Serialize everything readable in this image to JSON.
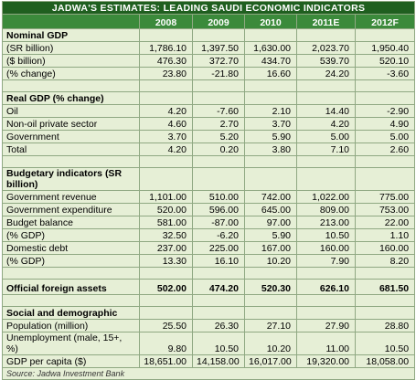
{
  "title": "JADWA'S ESTIMATES: LEADING SAUDI ECONOMIC INDICATORS",
  "columns": [
    "2008",
    "2009",
    "2010",
    "2011E",
    "2012F"
  ],
  "sections": [
    {
      "title": "Nominal GDP",
      "rows": [
        {
          "label": "(SR billion)",
          "values": [
            "1,786.10",
            "1,397.50",
            "1,630.00",
            "2,023.70",
            "1,950.40"
          ]
        },
        {
          "label": "($ billion)",
          "values": [
            "476.30",
            "372.70",
            "434.70",
            "539.70",
            "520.10"
          ]
        },
        {
          "label": "(% change)",
          "values": [
            "23.80",
            "-21.80",
            "16.60",
            "24.20",
            "-3.60"
          ]
        }
      ]
    },
    {
      "title": "Real GDP (% change)",
      "rows": [
        {
          "label": "Oil",
          "values": [
            "4.20",
            "-7.60",
            "2.10",
            "14.40",
            "-2.90"
          ]
        },
        {
          "label": "Non-oil private sector",
          "values": [
            "4.60",
            "2.70",
            "3.70",
            "4.20",
            "4.90"
          ]
        },
        {
          "label": "Government",
          "values": [
            "3.70",
            "5.20",
            "5.90",
            "5.00",
            "5.00"
          ]
        },
        {
          "label": "Total",
          "values": [
            "4.20",
            "0.20",
            "3.80",
            "7.10",
            "2.60"
          ]
        }
      ]
    },
    {
      "title": "Budgetary indicators (SR billion)",
      "rows": [
        {
          "label": "Government revenue",
          "values": [
            "1,101.00",
            "510.00",
            "742.00",
            "1,022.00",
            "775.00"
          ]
        },
        {
          "label": "Government expenditure",
          "values": [
            "520.00",
            "596.00",
            "645.00",
            "809.00",
            "753.00"
          ]
        },
        {
          "label": "Budget balance",
          "values": [
            "581.00",
            "-87.00",
            "97.00",
            "213.00",
            "22.00"
          ]
        },
        {
          "label": "(% GDP)",
          "values": [
            "32.50",
            "-6.20",
            "5.90",
            "10.50",
            "1.10"
          ]
        },
        {
          "label": "Domestic debt",
          "values": [
            "237.00",
            "225.00",
            "167.00",
            "160.00",
            "160.00"
          ]
        },
        {
          "label": "(% GDP)",
          "values": [
            "13.30",
            "16.10",
            "10.20",
            "7.90",
            "8.20"
          ]
        }
      ]
    },
    {
      "title": "Official foreign assets",
      "values": [
        "502.00",
        "474.20",
        "520.30",
        "626.10",
        "681.50"
      ],
      "rows": []
    },
    {
      "title": "Social and demographic",
      "rows": [
        {
          "label": "Population (million)",
          "values": [
            "25.50",
            "26.30",
            "27.10",
            "27.90",
            "28.80"
          ]
        },
        {
          "label": "Unemployment (male, 15+, %)",
          "values": [
            "9.80",
            "10.50",
            "10.20",
            "11.00",
            "10.50"
          ]
        },
        {
          "label": "GDP per capita ($)",
          "values": [
            "18,651.00",
            "14,158.00",
            "16,017.00",
            "19,320.00",
            "18,058.00"
          ]
        }
      ]
    }
  ],
  "source": "Source: Jadwa Investment Bank"
}
